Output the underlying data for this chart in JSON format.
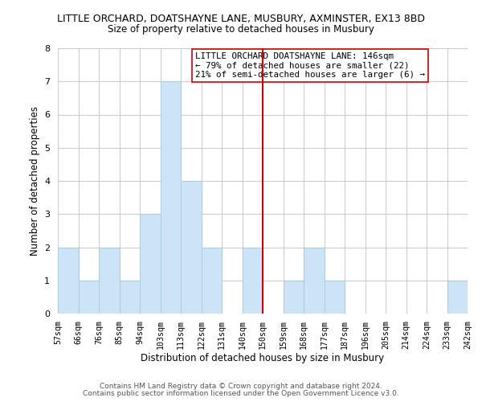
{
  "title": "LITTLE ORCHARD, DOATSHAYNE LANE, MUSBURY, AXMINSTER, EX13 8BD",
  "subtitle": "Size of property relative to detached houses in Musbury",
  "xlabel": "Distribution of detached houses by size in Musbury",
  "ylabel": "Number of detached properties",
  "bar_color": "#cce4f5",
  "bar_edge_color": "#aaccdd",
  "bins": [
    "57sqm",
    "66sqm",
    "76sqm",
    "85sqm",
    "94sqm",
    "103sqm",
    "113sqm",
    "122sqm",
    "131sqm",
    "140sqm",
    "150sqm",
    "159sqm",
    "168sqm",
    "177sqm",
    "187sqm",
    "196sqm",
    "205sqm",
    "214sqm",
    "224sqm",
    "233sqm",
    "242sqm"
  ],
  "counts": [
    2,
    1,
    2,
    1,
    3,
    7,
    4,
    2,
    0,
    2,
    0,
    1,
    2,
    1,
    0,
    0,
    0,
    0,
    0,
    1
  ],
  "vline_x": 10,
  "vline_color": "#cc0000",
  "ylim": [
    0,
    8
  ],
  "yticks": [
    0,
    1,
    2,
    3,
    4,
    5,
    6,
    7,
    8
  ],
  "annotation_title": "LITTLE ORCHARD DOATSHAYNE LANE: 146sqm",
  "annotation_line1": "← 79% of detached houses are smaller (22)",
  "annotation_line2": "21% of semi-detached houses are larger (6) →",
  "footer1": "Contains HM Land Registry data © Crown copyright and database right 2024.",
  "footer2": "Contains public sector information licensed under the Open Government Licence v3.0.",
  "background_color": "#ffffff",
  "grid_color": "#cccccc"
}
